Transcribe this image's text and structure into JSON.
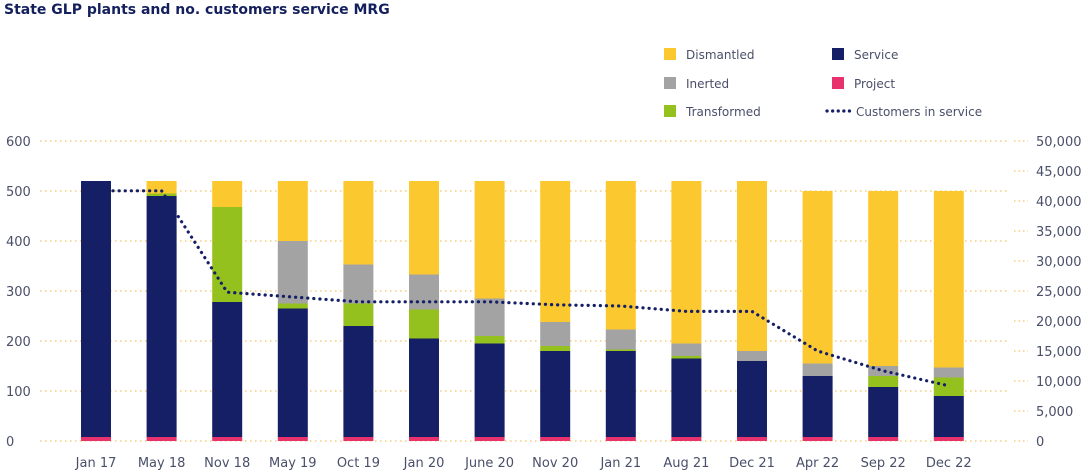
{
  "chart_data": {
    "type": "bar",
    "title": "State GLP plants and no. customers service MRG",
    "categories": [
      "Jan 17",
      "May 18",
      "Nov 18",
      "May 19",
      "Oct 19",
      "Jan 20",
      "June 20",
      "Nov 20",
      "Jan 21",
      "Aug 21",
      "Dec 21",
      "Apr 22",
      "Sep 22",
      "Dec 22"
    ],
    "stacked": true,
    "series": [
      {
        "name": "Project",
        "color": "#e8326e",
        "values": [
          8,
          8,
          8,
          8,
          8,
          8,
          8,
          8,
          8,
          8,
          8,
          8,
          8,
          8
        ]
      },
      {
        "name": "Service",
        "color": "#141f66",
        "values": [
          512,
          482,
          270,
          257,
          222,
          197,
          187,
          172,
          172,
          157,
          152,
          122,
          100,
          82
        ]
      },
      {
        "name": "Transformed",
        "color": "#95c11f",
        "values": [
          0,
          5,
          190,
          10,
          45,
          58,
          15,
          10,
          3,
          5,
          0,
          0,
          22,
          37
        ]
      },
      {
        "name": "Inerted",
        "color": "#a3a3a3",
        "values": [
          0,
          0,
          0,
          125,
          78,
          70,
          75,
          48,
          40,
          25,
          20,
          25,
          20,
          20
        ]
      },
      {
        "name": "Dismantled",
        "color": "#fcc830",
        "values": [
          0,
          25,
          52,
          120,
          167,
          187,
          235,
          282,
          297,
          325,
          340,
          345,
          350,
          353
        ]
      }
    ],
    "line_series": {
      "name": "Customers in service",
      "color": "#141f66",
      "values": [
        41700,
        41700,
        24800,
        24000,
        23200,
        23200,
        23200,
        22700,
        22500,
        21600,
        21600,
        15000,
        11700,
        9200
      ]
    },
    "ylim": [
      0,
      600
    ],
    "yticks": [
      0,
      100,
      200,
      300,
      400,
      500,
      600
    ],
    "y2lim": [
      0,
      50000
    ],
    "y2ticks": [
      "0",
      "5,000",
      "10,000",
      "15,000",
      "20,000",
      "25,000",
      "30,000",
      "35,000",
      "40,000",
      "45,000",
      "50,000"
    ],
    "y2tick_values": [
      0,
      5000,
      10000,
      15000,
      20000,
      25000,
      30000,
      35000,
      40000,
      45000,
      50000
    ],
    "legend": {
      "position": "top-right",
      "items": [
        {
          "label": "Dismantled",
          "color": "#fcc830",
          "kind": "swatch"
        },
        {
          "label": "Service",
          "color": "#141f66",
          "kind": "swatch"
        },
        {
          "label": "Inerted",
          "color": "#a3a3a3",
          "kind": "swatch"
        },
        {
          "label": "Project",
          "color": "#e8326e",
          "kind": "swatch"
        },
        {
          "label": "Transformed",
          "color": "#95c11f",
          "kind": "swatch"
        },
        {
          "label": "Customers in service",
          "color": "#141f66",
          "kind": "dots"
        }
      ]
    },
    "grid_color": "#f2b43c",
    "axis_text_color": "#4a4f6a"
  }
}
